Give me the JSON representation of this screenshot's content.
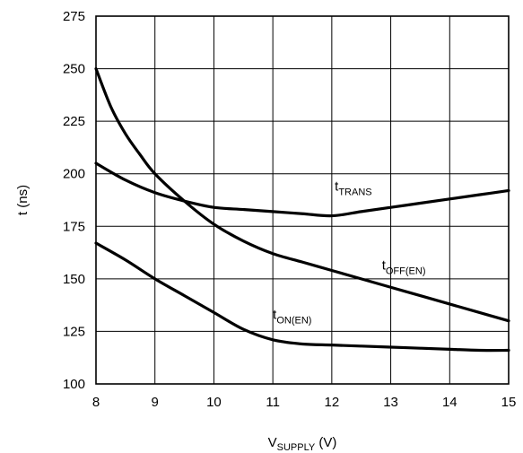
{
  "chart_data": {
    "type": "line",
    "xlabel": {
      "main": "V",
      "sub": "SUPPLY",
      "suffix": " (V)"
    },
    "ylabel": "t (ns)",
    "xlim": [
      8,
      15
    ],
    "ylim": [
      100,
      275
    ],
    "x_ticks": [
      8,
      9,
      10,
      11,
      12,
      13,
      14,
      15
    ],
    "y_ticks": [
      100,
      125,
      150,
      175,
      200,
      225,
      250,
      275
    ],
    "grid": true,
    "series": [
      {
        "label_main": "t",
        "label_sub": "TRANS",
        "x": [
          8,
          8.5,
          9,
          9.5,
          10,
          10.5,
          11,
          11.5,
          12,
          12.5,
          13,
          13.5,
          14,
          14.5,
          15
        ],
        "y": [
          205,
          197,
          191,
          187,
          184,
          183,
          182,
          181,
          180,
          182,
          184,
          186,
          188,
          190,
          192
        ]
      },
      {
        "label_main": "t",
        "label_sub": "OFF(EN)",
        "x": [
          8,
          8.25,
          8.5,
          8.75,
          9,
          9.5,
          10,
          10.5,
          11,
          11.5,
          12,
          12.5,
          13,
          13.5,
          14,
          14.5,
          15
        ],
        "y": [
          250,
          232,
          219,
          209,
          200,
          187,
          176,
          168,
          162,
          158,
          154,
          150,
          146,
          142,
          138,
          134,
          130
        ]
      },
      {
        "label_main": "t",
        "label_sub": "ON(EN)",
        "x": [
          8,
          8.5,
          9,
          9.5,
          10,
          10.5,
          11,
          11.5,
          12,
          12.5,
          13,
          13.5,
          14,
          14.5,
          15
        ],
        "y": [
          167,
          159,
          150,
          142,
          134,
          126,
          121,
          119,
          118.5,
          118,
          117.5,
          117,
          116.5,
          116,
          116
        ]
      }
    ]
  }
}
